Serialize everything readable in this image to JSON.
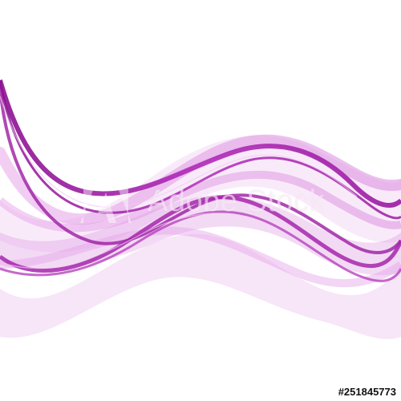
{
  "colors": {
    "background": "#ffffff",
    "wave_dark": "#9a1aa0",
    "wave_mid": "#c040c8",
    "wave_light": "#e6a8e8"
  },
  "watermark": {
    "text": "Adobe Stock",
    "logo_icon": "adobe-logo-icon"
  },
  "stock_id": "#251845773"
}
